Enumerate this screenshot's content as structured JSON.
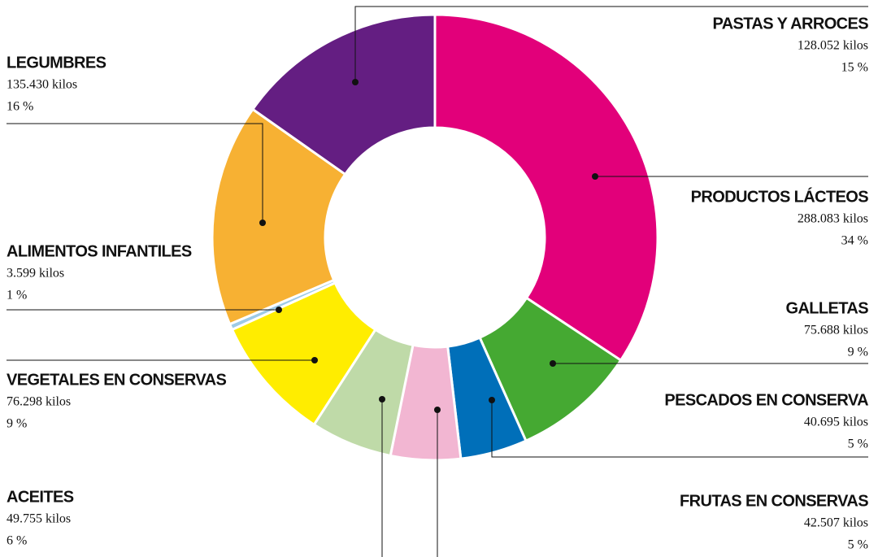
{
  "chart_data": {
    "type": "donut",
    "categories": [
      "PRODUCTOS LÁCTEOS",
      "GALLETAS",
      "PESCADOS EN CONSERVA",
      "FRUTAS EN CONSERVAS",
      "ACEITES",
      "VEGETALES EN CONSERVAS",
      "ALIMENTOS INFANTILES",
      "LEGUMBRES",
      "PASTAS Y ARROCES"
    ],
    "values": [
      288083,
      75688,
      40695,
      42507,
      49755,
      76298,
      3599,
      135430,
      128052
    ],
    "value_labels": [
      "288.083 kilos",
      "75.688 kilos",
      "40.695 kilos",
      "42.507 kilos",
      "49.755 kilos",
      "76.298 kilos",
      "3.599 kilos",
      "135.430 kilos",
      "128.052 kilos"
    ],
    "percentages": [
      34,
      9,
      5,
      5,
      6,
      9,
      1,
      16,
      15
    ],
    "percentage_labels": [
      "34 %",
      "9 %",
      "5 %",
      "5 %",
      "6 %",
      "9 %",
      "1 %",
      "16 %",
      "15 %"
    ],
    "colors": [
      "#e2007a",
      "#45a932",
      "#006fb9",
      "#f2b6d2",
      "#bfdaa8",
      "#ffed00",
      "#9ecae6",
      "#f7b133",
      "#641e82"
    ]
  }
}
